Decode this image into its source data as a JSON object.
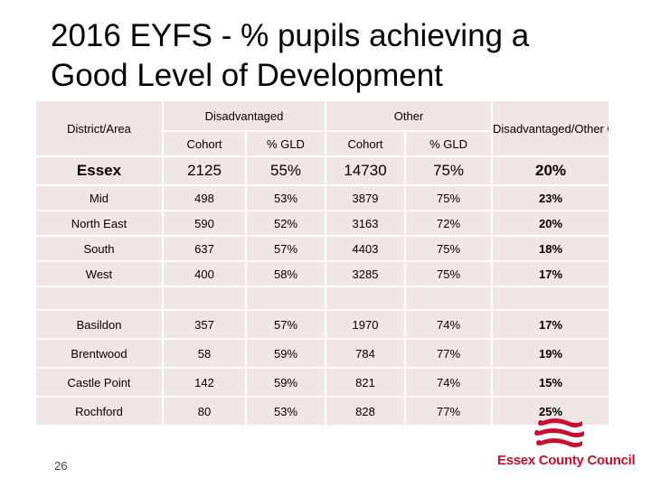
{
  "title": {
    "line1": "2016 EYFS - % pupils achieving a",
    "line2": "Good Level of Development"
  },
  "table": {
    "header": {
      "district": "District/Area",
      "disadvantaged": "Disadvantaged",
      "other": "Other",
      "gap": "Disadvantaged/Other Gap",
      "cohort1": "Cohort",
      "gld1": "% GLD",
      "cohort2": "Cohort",
      "gld2": "% GLD"
    },
    "essex": {
      "area": "Essex",
      "dis_cohort": "2125",
      "dis_gld": "55%",
      "oth_cohort": "14730",
      "oth_gld": "75%",
      "gap": "20%"
    },
    "quadrants": [
      {
        "area": "Mid",
        "dis_cohort": "498",
        "dis_gld": "53%",
        "oth_cohort": "3879",
        "oth_gld": "75%",
        "gap": "23%"
      },
      {
        "area": "North East",
        "dis_cohort": "590",
        "dis_gld": "52%",
        "oth_cohort": "3163",
        "oth_gld": "72%",
        "gap": "20%"
      },
      {
        "area": "South",
        "dis_cohort": "637",
        "dis_gld": "57%",
        "oth_cohort": "4403",
        "oth_gld": "75%",
        "gap": "18%"
      },
      {
        "area": "West",
        "dis_cohort": "400",
        "dis_gld": "58%",
        "oth_cohort": "3285",
        "oth_gld": "75%",
        "gap": "17%"
      }
    ],
    "districts": [
      {
        "area": "Basildon",
        "dis_cohort": "357",
        "dis_gld": "57%",
        "oth_cohort": "1970",
        "oth_gld": "74%",
        "gap": "17%"
      },
      {
        "area": "Brentwood",
        "dis_cohort": "58",
        "dis_gld": "59%",
        "oth_cohort": "784",
        "oth_gld": "77%",
        "gap": "19%"
      },
      {
        "area": "Castle Point",
        "dis_cohort": "142",
        "dis_gld": "59%",
        "oth_cohort": "821",
        "oth_gld": "74%",
        "gap": "15%"
      },
      {
        "area": "Rochford",
        "dis_cohort": "80",
        "dis_gld": "53%",
        "oth_cohort": "828",
        "oth_gld": "77%",
        "gap": "25%"
      }
    ]
  },
  "page_number": "26",
  "logo": {
    "text": "Essex County Council",
    "icon": "essex-seaxes-crest-icon"
  },
  "colors": {
    "cell_bg": "#f1e6e6",
    "accent_red": "#c8102e"
  }
}
